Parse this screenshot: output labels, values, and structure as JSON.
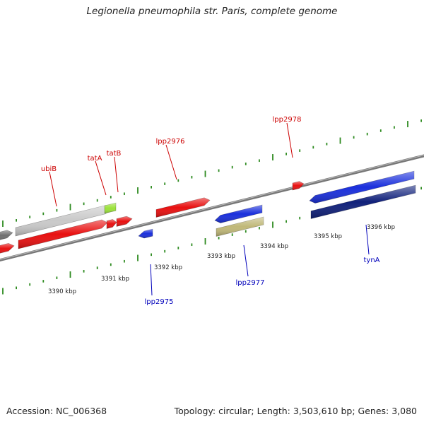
{
  "title": "Legionella pneumophila str. Paris, complete genome",
  "footer": {
    "accession": "Accession: NC_006368",
    "summary": "Topology: circular; Length: 3,503,610 bp; Genes: 3,080"
  },
  "colors": {
    "forward_gene": "#e81010",
    "reverse_gene": "#1a2fdc",
    "gray_gene": "#c9c9c9",
    "dark_gene": "#10207a",
    "olive_gene": "#c0b878",
    "green_gene": "#9be23a",
    "tick": "#2e8b20",
    "backbone": "#8a8a8a",
    "forward_label": "#cc0000",
    "reverse_label": "#0000bb"
  },
  "scale_labels": [
    "3390 kbp",
    "3391 kbp",
    "3392 kbp",
    "3393 kbp",
    "3394 kbp",
    "3395 kbp",
    "3396 kbp"
  ],
  "gene_labels_top": [
    "ubiB",
    "tatA",
    "tatB",
    "lpp2976",
    "lpp2978"
  ],
  "gene_labels_bottom": [
    "lpp2975",
    "lpp2977",
    "tynA"
  ]
}
